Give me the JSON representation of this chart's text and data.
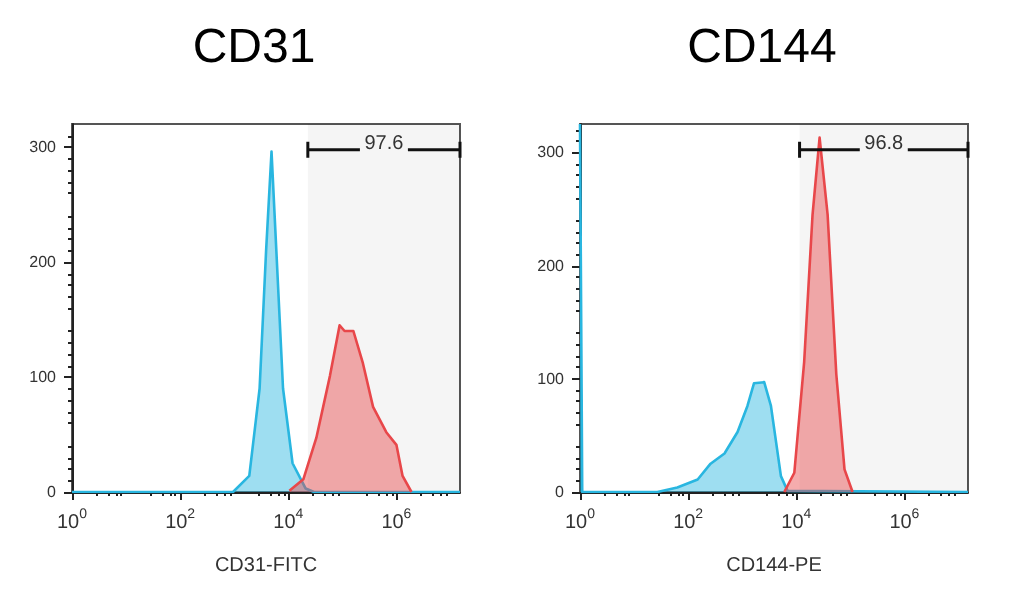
{
  "chart_data": [
    {
      "type": "area",
      "title": "CD31",
      "xlabel": "CD31-FITC",
      "log": "x",
      "xlim": [
        1,
        15000000
      ],
      "xticks": [
        {
          "value": 1,
          "label": "10$^{0}$"
        },
        {
          "value": 100,
          "label": "10$^{2}$"
        },
        {
          "value": 10000,
          "label": "10$^{4}$"
        },
        {
          "value": 1000000,
          "label": "10$^{6}$"
        }
      ],
      "ylim": [
        0,
        320
      ],
      "yticks": [
        0,
        100,
        200,
        300
      ],
      "grid": false,
      "marker": "none",
      "series": [
        {
          "color": "#29b6e0",
          "x": [
            1,
            950,
            1900,
            2950,
            3900,
            4900,
            6000,
            8000,
            12000,
            21000,
            30000,
            15000000
          ],
          "values": [
            0,
            0,
            14,
            90,
            211,
            296,
            211,
            90,
            25,
            3,
            0,
            0
          ]
        },
        {
          "color": "#e8474a",
          "x": [
            10500,
            19000,
            33000,
            59000,
            89000,
            110000,
            160000,
            240000,
            370000,
            650000,
            1000000,
            1300000,
            1900000
          ],
          "values": [
            1,
            11,
            47,
            101,
            145,
            140,
            140,
            112,
            74,
            52,
            41,
            14,
            0
          ]
        }
      ],
      "bands": [
        {
          "axis": "x",
          "from": 23000,
          "to": 15000000,
          "label": "97.6"
        }
      ]
    },
    {
      "type": "area",
      "title": "CD144",
      "xlabel": "CD144-PE",
      "log": "x",
      "xlim": [
        1,
        15000000
      ],
      "xticks": [
        {
          "value": 1,
          "label": "10$^{0}$"
        },
        {
          "value": 100,
          "label": "10$^{2}$"
        },
        {
          "value": 10000,
          "label": "10$^{4}$"
        },
        {
          "value": 1000000,
          "label": "10$^{6}$"
        }
      ],
      "ylim": [
        0,
        325
      ],
      "yticks": [
        0,
        100,
        200,
        300
      ],
      "grid": false,
      "marker": "none",
      "series": [
        {
          "color": "#29b6e0",
          "x": [
            1,
            1.1,
            27,
            63,
            150,
            260,
            470,
            820,
            1250,
            1650,
            2550,
            3400,
            5200,
            6900,
            15000000
          ],
          "values": [
            325,
            0,
            0,
            4,
            11,
            25,
            34,
            53,
            76,
            96,
            97,
            76,
            14,
            1,
            0
          ]
        },
        {
          "color": "#e8474a",
          "x": [
            6000,
            9200,
            14000,
            20000,
            27000,
            38000,
            55000,
            78000,
            110000
          ],
          "values": [
            0,
            17,
            115,
            245,
            313,
            245,
            104,
            20,
            0
          ]
        }
      ],
      "bands": [
        {
          "axis": "x",
          "from": 11500,
          "to": 15000000,
          "label": "96.8"
        }
      ]
    }
  ]
}
